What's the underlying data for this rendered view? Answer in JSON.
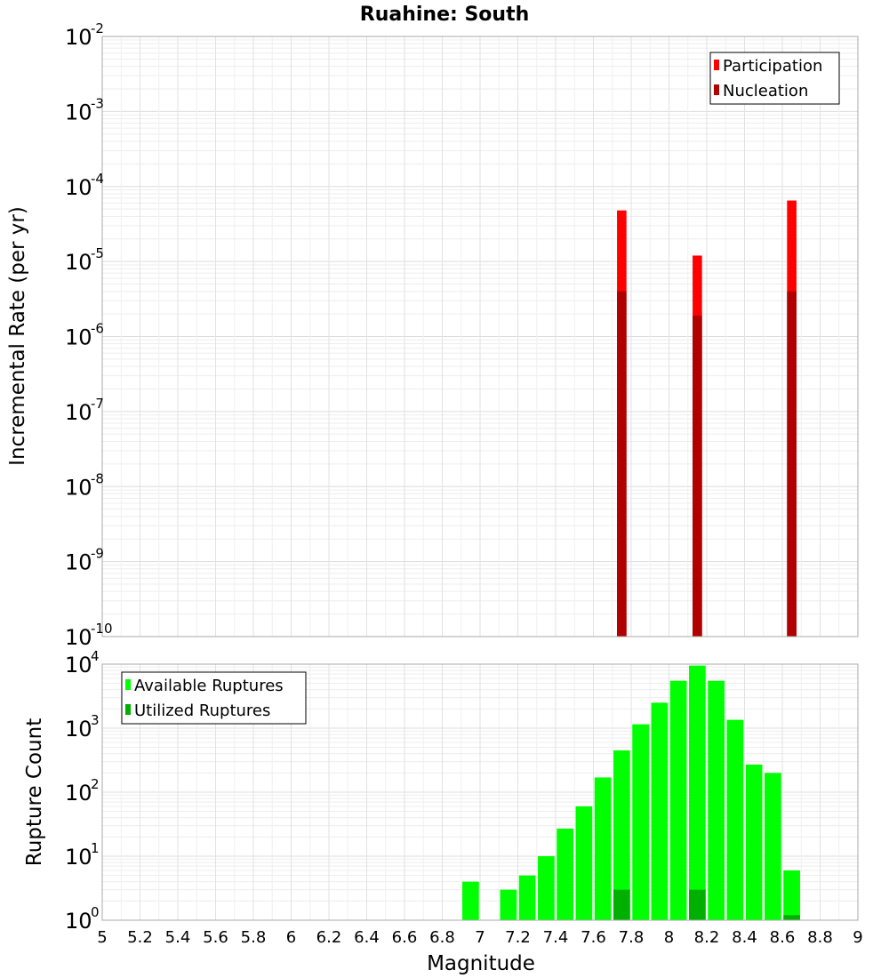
{
  "chart_data": {
    "title": "Ruahine: South",
    "xlabel": "Magnitude",
    "xlim": [
      5,
      9
    ],
    "xticks": [
      5,
      5.2,
      5.4,
      5.6,
      5.8,
      6,
      6.2,
      6.4,
      6.6,
      6.8,
      7,
      7.2,
      7.4,
      7.6,
      7.8,
      8,
      8.2,
      8.4,
      8.6,
      8.8,
      9
    ],
    "xtick_labels": [
      "5",
      "5.2",
      "5.4",
      "5.6",
      "5.8",
      "6",
      "6.2",
      "6.4",
      "6.6",
      "6.8",
      "7",
      "7.2",
      "7.4",
      "7.6",
      "7.8",
      "8",
      "8.2",
      "8.4",
      "8.6",
      "8.8",
      "9"
    ],
    "bin_width": 0.1,
    "panels": [
      {
        "type": "bar",
        "ylabel": "Incremental Rate (per yr)",
        "yscale": "log",
        "ylim_exp": [
          -10,
          -2
        ],
        "legend_position": "top-right",
        "series": [
          {
            "name": "Participation",
            "color": "#ff0000",
            "x": [
              7.75,
              8.15,
              8.65
            ],
            "values": [
              4.8e-05,
              1.2e-05,
              6.5e-05
            ]
          },
          {
            "name": "Nucleation",
            "color": "#b00000",
            "x": [
              7.75,
              8.15,
              8.65
            ],
            "values": [
              4e-06,
              1.9e-06,
              4e-06
            ]
          }
        ]
      },
      {
        "type": "bar",
        "ylabel": "Rupture Count",
        "yscale": "log",
        "ylim_exp": [
          0,
          4
        ],
        "legend_position": "top-left",
        "series": [
          {
            "name": "Available Ruptures",
            "color": "#00ff00",
            "x": [
              6.95,
              7.15,
              7.25,
              7.35,
              7.45,
              7.55,
              7.65,
              7.75,
              7.85,
              7.95,
              8.05,
              8.15,
              8.25,
              8.35,
              8.45,
              8.55,
              8.65
            ],
            "values": [
              4,
              3,
              5,
              10,
              27,
              60,
              170,
              450,
              1150,
              2500,
              5500,
              9500,
              5500,
              1350,
              270,
              200,
              6
            ]
          },
          {
            "name": "Utilized Ruptures",
            "color": "#00b000",
            "x": [
              7.75,
              8.15,
              8.65
            ],
            "values": [
              3,
              3,
              1.2
            ]
          }
        ]
      }
    ]
  }
}
